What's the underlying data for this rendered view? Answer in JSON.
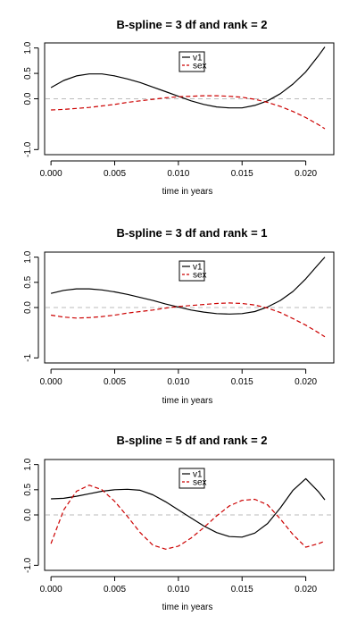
{
  "chart_data": [
    {
      "type": "line",
      "title": "B-spline = 3 df and rank = 2",
      "xlabel": "time in years",
      "ylabel": "",
      "xlim": [
        -0.0005,
        0.0222
      ],
      "ylim": [
        -1.1,
        1.1
      ],
      "xticks": [
        "0.000",
        "0.005",
        "0.010",
        "0.015",
        "0.020"
      ],
      "yticks": [
        "-1.0",
        "0.0",
        "0.5",
        "1.0"
      ],
      "reference_line": 0,
      "grid": false,
      "legend": [
        "v1",
        "sex"
      ],
      "legend_placement": "top-center",
      "series": [
        {
          "name": "v1",
          "color": "#000000",
          "dash": "solid",
          "x": [
            0,
            0.001,
            0.002,
            0.003,
            0.004,
            0.005,
            0.006,
            0.007,
            0.008,
            0.009,
            0.01,
            0.011,
            0.012,
            0.013,
            0.014,
            0.015,
            0.016,
            0.017,
            0.018,
            0.019,
            0.02,
            0.021,
            0.0215
          ],
          "y": [
            0.22,
            0.36,
            0.45,
            0.49,
            0.49,
            0.45,
            0.39,
            0.32,
            0.23,
            0.14,
            0.05,
            -0.04,
            -0.11,
            -0.16,
            -0.18,
            -0.18,
            -0.13,
            -0.04,
            0.1,
            0.29,
            0.53,
            0.85,
            1.02
          ]
        },
        {
          "name": "sex",
          "color": "#cc0000",
          "dash": "dashed",
          "x": [
            0,
            0.001,
            0.002,
            0.003,
            0.004,
            0.005,
            0.006,
            0.007,
            0.008,
            0.009,
            0.01,
            0.011,
            0.012,
            0.013,
            0.014,
            0.015,
            0.016,
            0.017,
            0.018,
            0.019,
            0.02,
            0.021,
            0.0215
          ],
          "y": [
            -0.22,
            -0.21,
            -0.19,
            -0.17,
            -0.14,
            -0.11,
            -0.07,
            -0.04,
            -0.01,
            0.02,
            0.04,
            0.05,
            0.06,
            0.06,
            0.05,
            0.03,
            -0.01,
            -0.07,
            -0.15,
            -0.25,
            -0.37,
            -0.51,
            -0.59
          ]
        }
      ]
    },
    {
      "type": "line",
      "title": "B-spline = 3 df and rank = 1",
      "xlabel": "time in years",
      "ylabel": "",
      "xlim": [
        -0.0005,
        0.0222
      ],
      "ylim": [
        -1.1,
        1.1
      ],
      "xticks": [
        "0.000",
        "0.005",
        "0.010",
        "0.015",
        "0.020"
      ],
      "yticks": [
        "-1",
        "0.0",
        "0.5",
        "1.0"
      ],
      "reference_line": 0,
      "grid": false,
      "legend": [
        "v1",
        "sex"
      ],
      "legend_placement": "top-center",
      "series": [
        {
          "name": "v1",
          "color": "#000000",
          "dash": "solid",
          "x": [
            0,
            0.001,
            0.002,
            0.003,
            0.004,
            0.005,
            0.006,
            0.007,
            0.008,
            0.009,
            0.01,
            0.011,
            0.012,
            0.013,
            0.014,
            0.015,
            0.016,
            0.017,
            0.018,
            0.019,
            0.02,
            0.021,
            0.0215
          ],
          "y": [
            0.28,
            0.34,
            0.37,
            0.37,
            0.35,
            0.31,
            0.26,
            0.2,
            0.14,
            0.07,
            0.01,
            -0.05,
            -0.09,
            -0.12,
            -0.13,
            -0.12,
            -0.08,
            0.01,
            0.14,
            0.32,
            0.57,
            0.86,
            1.0
          ]
        },
        {
          "name": "sex",
          "color": "#cc0000",
          "dash": "dashed",
          "x": [
            0,
            0.001,
            0.002,
            0.003,
            0.004,
            0.005,
            0.006,
            0.007,
            0.008,
            0.009,
            0.01,
            0.011,
            0.012,
            0.013,
            0.014,
            0.015,
            0.016,
            0.017,
            0.018,
            0.019,
            0.02,
            0.021,
            0.0215
          ],
          "y": [
            -0.15,
            -0.19,
            -0.21,
            -0.2,
            -0.18,
            -0.15,
            -0.11,
            -0.08,
            -0.05,
            -0.01,
            0.02,
            0.04,
            0.06,
            0.08,
            0.09,
            0.08,
            0.05,
            -0.01,
            -0.1,
            -0.22,
            -0.35,
            -0.5,
            -0.58
          ]
        }
      ]
    },
    {
      "type": "line",
      "title": "B-spline = 5 df and rank = 2",
      "xlabel": "time in years",
      "ylabel": "",
      "xlim": [
        -0.0005,
        0.0222
      ],
      "ylim": [
        -1.1,
        1.1
      ],
      "xticks": [
        "0.000",
        "0.005",
        "0.010",
        "0.015",
        "0.020"
      ],
      "yticks": [
        "-1.0",
        "0.0",
        "0.5",
        "1.0"
      ],
      "reference_line": 0,
      "grid": false,
      "legend": [
        "v1",
        "sex"
      ],
      "legend_placement": "top-center",
      "series": [
        {
          "name": "v1",
          "color": "#000000",
          "dash": "solid",
          "x": [
            0,
            0.001,
            0.002,
            0.003,
            0.004,
            0.005,
            0.006,
            0.007,
            0.008,
            0.009,
            0.01,
            0.011,
            0.012,
            0.013,
            0.014,
            0.015,
            0.016,
            0.017,
            0.018,
            0.019,
            0.02,
            0.021,
            0.0215
          ],
          "y": [
            0.32,
            0.33,
            0.37,
            0.42,
            0.47,
            0.5,
            0.51,
            0.49,
            0.4,
            0.26,
            0.1,
            -0.06,
            -0.22,
            -0.35,
            -0.43,
            -0.44,
            -0.36,
            -0.17,
            0.14,
            0.49,
            0.72,
            0.46,
            0.3
          ]
        },
        {
          "name": "sex",
          "color": "#cc0000",
          "dash": "dashed",
          "x": [
            0,
            0.001,
            0.002,
            0.003,
            0.004,
            0.005,
            0.006,
            0.007,
            0.008,
            0.009,
            0.01,
            0.011,
            0.012,
            0.013,
            0.014,
            0.015,
            0.016,
            0.017,
            0.018,
            0.019,
            0.02,
            0.021,
            0.0215
          ],
          "y": [
            -0.57,
            0.1,
            0.47,
            0.59,
            0.5,
            0.27,
            -0.03,
            -0.35,
            -0.6,
            -0.68,
            -0.62,
            -0.46,
            -0.25,
            -0.02,
            0.18,
            0.29,
            0.31,
            0.2,
            -0.08,
            -0.39,
            -0.64,
            -0.57,
            -0.52
          ]
        }
      ]
    }
  ]
}
